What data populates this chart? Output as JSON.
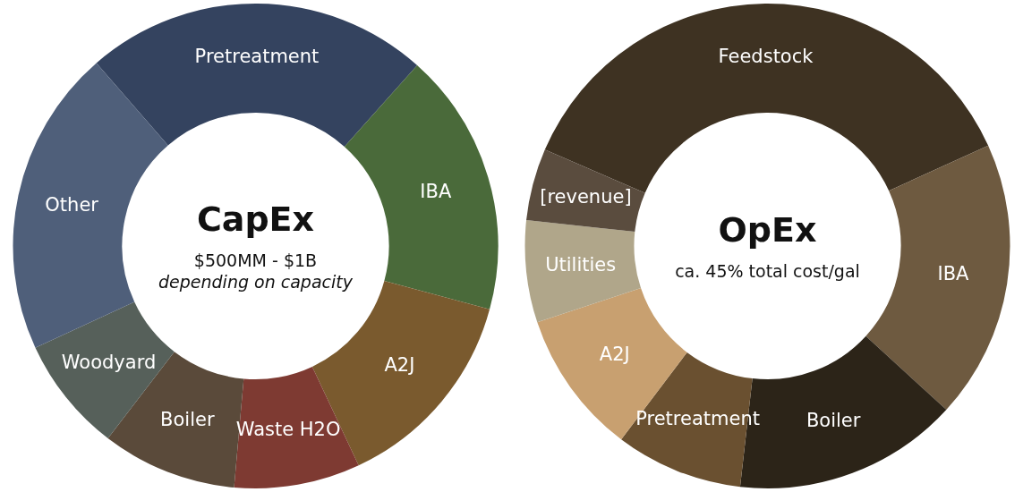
{
  "chart_data": [
    {
      "type": "donut",
      "title": "CapEx",
      "annotations": [
        "$500MM - $1B",
        "depending on capacity"
      ],
      "categories": [
        "Pretreatment",
        "IBA",
        "A2J",
        "Waste H2O",
        "Boiler",
        "Woodyard",
        "Other"
      ],
      "values": [
        23.0,
        17.6,
        13.8,
        8.4,
        9.0,
        7.7,
        20.5
      ],
      "colors": [
        "#34435f",
        "#4a6a3a",
        "#7a5a2e",
        "#7e3a32",
        "#5a4a3a",
        "#56605a",
        "#4f5f7a"
      ],
      "legend": false
    },
    {
      "type": "donut",
      "title": "OpEx",
      "annotations": [
        "ca. 45% total cost/gal"
      ],
      "categories": [
        "Feedstock",
        "IBA",
        "Boiler",
        "Pretreatment",
        "A2J",
        "Utilities",
        "[revenue]"
      ],
      "values": [
        36.7,
        18.6,
        15.0,
        8.5,
        9.6,
        6.8,
        4.8
      ],
      "colors": [
        "#3e3222",
        "#6e5a40",
        "#2c2418",
        "#6a5030",
        "#c8a070",
        "#b0a68a",
        "#5a4c3e"
      ],
      "legend": false
    }
  ]
}
